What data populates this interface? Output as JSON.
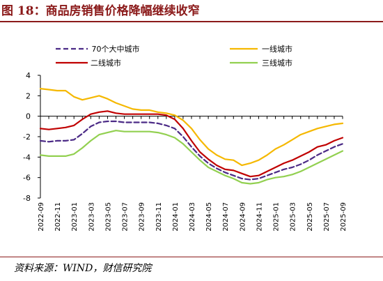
{
  "figure": {
    "title": "图 18：商品房销售价格降幅继续收窄",
    "source": "资料来源：WIND，财信研究院"
  },
  "chart_data": {
    "type": "line",
    "title": "",
    "xlabel": "",
    "ylabel": "",
    "ylim": [
      -8,
      4
    ],
    "yticks": [
      4,
      2,
      0,
      -2,
      -4,
      -6,
      -8
    ],
    "grid": false,
    "legend_position": "top",
    "x": [
      "2022-09",
      "2022-10",
      "2022-11",
      "2022-12",
      "2023-01",
      "2023-02",
      "2023-03",
      "2023-04",
      "2023-05",
      "2023-06",
      "2023-07",
      "2023-08",
      "2023-09",
      "2023-10",
      "2023-11",
      "2023-12",
      "2024-01",
      "2024-02",
      "2024-03",
      "2024-04",
      "2024-05",
      "2024-06",
      "2024-07",
      "2024-08",
      "2024-09",
      "2024-10",
      "2024-11",
      "2024-12",
      "2025-01",
      "2025-02",
      "2025-03",
      "2025-04",
      "2025-05",
      "2025-06",
      "2025-07",
      "2025-08",
      "2025-09"
    ],
    "xtick_labels": [
      "2022-09",
      "2022-11",
      "2023-01",
      "2023-03",
      "2023-05",
      "2023-07",
      "2023-09",
      "2023-11",
      "2024-01",
      "2024-03",
      "2024-05",
      "2024-07",
      "2024-09",
      "2024-11",
      "2025-01",
      "2025-03",
      "2025-05",
      "2025-07",
      "2025-09"
    ],
    "series": [
      {
        "name": "70个大中城市",
        "color": "#4b2a86",
        "dash": true,
        "values": [
          -2.4,
          -2.5,
          -2.4,
          -2.4,
          -2.3,
          -1.7,
          -1.0,
          -0.6,
          -0.5,
          -0.5,
          -0.6,
          -0.6,
          -0.6,
          -0.6,
          -0.7,
          -0.9,
          -1.2,
          -2.0,
          -3.0,
          -3.9,
          -4.6,
          -5.1,
          -5.5,
          -5.8,
          -6.1,
          -6.2,
          -6.1,
          -5.8,
          -5.5,
          -5.2,
          -5.0,
          -4.7,
          -4.3,
          -3.8,
          -3.4,
          -3.0,
          -2.7
        ]
      },
      {
        "name": "一线城市",
        "color": "#f5b800",
        "dash": false,
        "values": [
          2.7,
          2.6,
          2.5,
          2.5,
          1.9,
          1.6,
          1.8,
          2.0,
          1.7,
          1.3,
          1.0,
          0.7,
          0.6,
          0.6,
          0.4,
          0.3,
          0.1,
          -0.4,
          -1.2,
          -2.3,
          -3.2,
          -3.8,
          -4.2,
          -4.3,
          -4.8,
          -4.6,
          -4.3,
          -3.8,
          -3.2,
          -2.8,
          -2.3,
          -1.8,
          -1.5,
          -1.2,
          -1.0,
          -0.8,
          -0.7
        ]
      },
      {
        "name": "二线城市",
        "color": "#c00000",
        "dash": false,
        "values": [
          -1.2,
          -1.3,
          -1.2,
          -1.1,
          -0.9,
          -0.3,
          0.2,
          0.4,
          0.5,
          0.3,
          0.2,
          0.2,
          0.2,
          0.2,
          0.2,
          0.1,
          -0.3,
          -1.2,
          -2.4,
          -3.5,
          -4.2,
          -4.8,
          -5.2,
          -5.3,
          -5.6,
          -5.9,
          -5.8,
          -5.4,
          -5.0,
          -4.6,
          -4.3,
          -3.9,
          -3.5,
          -3.0,
          -2.8,
          -2.4,
          -2.1
        ]
      },
      {
        "name": "三线城市",
        "color": "#92d050",
        "dash": false,
        "values": [
          -3.8,
          -3.9,
          -3.9,
          -3.9,
          -3.7,
          -3.1,
          -2.4,
          -1.8,
          -1.6,
          -1.4,
          -1.5,
          -1.5,
          -1.5,
          -1.5,
          -1.6,
          -1.8,
          -2.1,
          -2.7,
          -3.5,
          -4.3,
          -5.0,
          -5.4,
          -5.8,
          -6.1,
          -6.5,
          -6.6,
          -6.5,
          -6.2,
          -6.0,
          -5.9,
          -5.7,
          -5.4,
          -5.0,
          -4.6,
          -4.2,
          -3.8,
          -3.4
        ]
      }
    ]
  }
}
